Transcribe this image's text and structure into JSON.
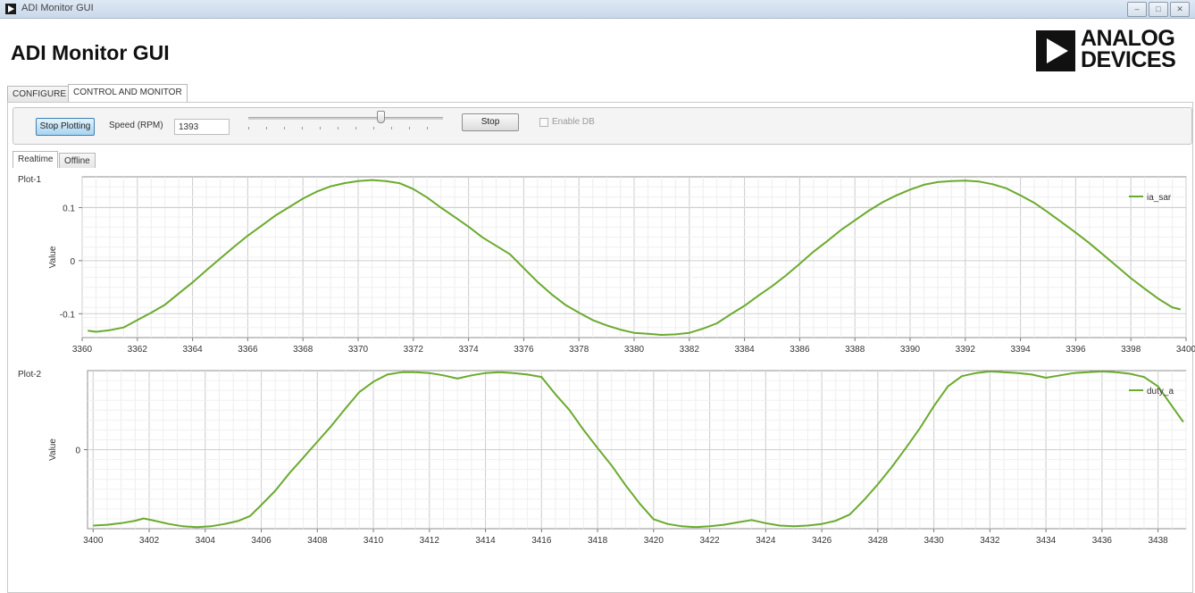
{
  "window": {
    "title": "ADI Monitor GUI",
    "controls": [
      "–",
      "□",
      "✕"
    ]
  },
  "app": {
    "title": "ADI Monitor GUI"
  },
  "brand": {
    "logo_line1": "ANALOG",
    "logo_line2": "DEVICES"
  },
  "main_tabs": [
    {
      "label": "CONFIGURE",
      "active": false
    },
    {
      "label": "CONTROL AND MONITOR",
      "active": true
    }
  ],
  "controls": {
    "stop_plotting": "Stop Plotting",
    "speed_label": "Speed (RPM)",
    "speed_value": "1393",
    "speed_slider_level": 0.68,
    "stop": "Stop",
    "enable_db": "Enable DB",
    "enable_db_checked": false
  },
  "sub_tabs": [
    {
      "label": "Realtime",
      "active": true
    },
    {
      "label": "Offline",
      "active": false
    }
  ],
  "colors": {
    "series": "#6aaa2e",
    "active_button": "#a8d4f2"
  },
  "chart_data": [
    {
      "type": "line",
      "title": "Plot-1",
      "ylabel": "Value",
      "xlabel": "",
      "xlim": [
        3360,
        3400
      ],
      "ylim": [
        -0.145,
        0.158
      ],
      "xticks": [
        "3360",
        "3362",
        "3364",
        "3366",
        "3368",
        "3370",
        "3372",
        "3374",
        "3376",
        "3378",
        "3380",
        "3382",
        "3384",
        "3386",
        "3388",
        "3390",
        "3392",
        "3394",
        "3396",
        "3398",
        "3400"
      ],
      "yticks": [
        {
          "value": 0.1,
          "label": "0.1"
        },
        {
          "value": 0,
          "label": "0"
        },
        {
          "value": -0.1,
          "label": "-0.1"
        }
      ],
      "grid": true,
      "legend_position": "top-right",
      "series": [
        {
          "name": "ia_sar",
          "x": [
            3360.2,
            3360.5,
            3361,
            3361.5,
            3362,
            3362.5,
            3363,
            3363.5,
            3364,
            3364.5,
            3365,
            3365.5,
            3366,
            3366.5,
            3367,
            3367.5,
            3368,
            3368.5,
            3369,
            3369.5,
            3370,
            3370.5,
            3371,
            3371.5,
            3372,
            3372.5,
            3373,
            3373.5,
            3374,
            3374.5,
            3375,
            3375.5,
            3376,
            3376.5,
            3377,
            3377.5,
            3378,
            3378.5,
            3379,
            3379.5,
            3380,
            3380.5,
            3381,
            3381.5,
            3382,
            3382.5,
            3383,
            3383.5,
            3384,
            3384.5,
            3385,
            3385.5,
            3386,
            3386.5,
            3387,
            3387.5,
            3388,
            3388.5,
            3389,
            3389.5,
            3390,
            3390.5,
            3391,
            3391.5,
            3392,
            3392.5,
            3393,
            3393.5,
            3394,
            3394.5,
            3395,
            3395.5,
            3396,
            3396.5,
            3397,
            3397.5,
            3398,
            3398.5,
            3399,
            3399.5,
            3399.8
          ],
          "values": [
            -0.132,
            -0.134,
            -0.131,
            -0.126,
            -0.112,
            -0.098,
            -0.083,
            -0.062,
            -0.041,
            -0.018,
            0.004,
            0.026,
            0.047,
            0.066,
            0.085,
            0.101,
            0.117,
            0.13,
            0.14,
            0.146,
            0.15,
            0.152,
            0.15,
            0.146,
            0.135,
            0.119,
            0.1,
            0.082,
            0.064,
            0.044,
            0.028,
            0.012,
            -0.014,
            -0.04,
            -0.063,
            -0.083,
            -0.098,
            -0.112,
            -0.122,
            -0.13,
            -0.136,
            -0.138,
            -0.14,
            -0.139,
            -0.136,
            -0.128,
            -0.118,
            -0.101,
            -0.085,
            -0.066,
            -0.048,
            -0.028,
            -0.006,
            0.017,
            0.037,
            0.058,
            0.076,
            0.094,
            0.11,
            0.123,
            0.134,
            0.143,
            0.148,
            0.15,
            0.151,
            0.149,
            0.144,
            0.136,
            0.123,
            0.109,
            0.091,
            0.072,
            0.053,
            0.033,
            0.011,
            -0.011,
            -0.033,
            -0.053,
            -0.072,
            -0.088,
            -0.092
          ]
        }
      ]
    },
    {
      "type": "line",
      "title": "Plot-2",
      "ylabel": "Value",
      "xlabel": "",
      "xlim": [
        3399.8,
        3439
      ],
      "ylim": [
        -1,
        1
      ],
      "xticks": [
        "3400",
        "3402",
        "3404",
        "3406",
        "3408",
        "3410",
        "3412",
        "3414",
        "3416",
        "3418",
        "3420",
        "3422",
        "3424",
        "3426",
        "3428",
        "3430",
        "3432",
        "3434",
        "3436",
        "3438"
      ],
      "yticks": [
        {
          "value": 0,
          "label": "0"
        }
      ],
      "grid": true,
      "legend_position": "top-right",
      "series": [
        {
          "name": "duty_a",
          "x": [
            3400,
            3400.5,
            3401,
            3401.5,
            3401.8,
            3402.2,
            3402.7,
            3403.2,
            3403.7,
            3404.2,
            3404.7,
            3405.2,
            3405.6,
            3406,
            3406.5,
            3407,
            3407.5,
            3408,
            3408.5,
            3409,
            3409.5,
            3410,
            3410.5,
            3411,
            3411.5,
            3412,
            3412.5,
            3413,
            3413.5,
            3414,
            3414.5,
            3415,
            3415.5,
            3416,
            3416.5,
            3417,
            3417.5,
            3418,
            3418.5,
            3419,
            3419.5,
            3420,
            3420.5,
            3421,
            3421.5,
            3422,
            3422.5,
            3423,
            3423.5,
            3424,
            3424.5,
            3425,
            3425.5,
            3426,
            3426.5,
            3427,
            3427.5,
            3428,
            3428.5,
            3429,
            3429.5,
            3430,
            3430.5,
            3431,
            3431.5,
            3432,
            3432.5,
            3433,
            3433.5,
            3434,
            3434.5,
            3435,
            3435.5,
            3436,
            3436.5,
            3437,
            3437.5,
            3438,
            3438.5,
            3438.9
          ],
          "values": [
            -0.96,
            -0.95,
            -0.93,
            -0.9,
            -0.87,
            -0.9,
            -0.94,
            -0.97,
            -0.98,
            -0.97,
            -0.94,
            -0.9,
            -0.84,
            -0.7,
            -0.52,
            -0.3,
            -0.1,
            0.1,
            0.3,
            0.52,
            0.73,
            0.86,
            0.95,
            0.98,
            0.98,
            0.97,
            0.94,
            0.9,
            0.94,
            0.97,
            0.98,
            0.97,
            0.95,
            0.92,
            0.7,
            0.5,
            0.25,
            0.02,
            -0.2,
            -0.45,
            -0.68,
            -0.88,
            -0.94,
            -0.97,
            -0.98,
            -0.97,
            -0.95,
            -0.92,
            -0.89,
            -0.93,
            -0.96,
            -0.97,
            -0.96,
            -0.94,
            -0.9,
            -0.82,
            -0.64,
            -0.44,
            -0.22,
            0.02,
            0.27,
            0.55,
            0.8,
            0.93,
            0.97,
            0.99,
            0.98,
            0.97,
            0.95,
            0.91,
            0.94,
            0.97,
            0.98,
            0.99,
            0.98,
            0.96,
            0.92,
            0.8,
            0.55,
            0.35
          ]
        }
      ]
    }
  ]
}
